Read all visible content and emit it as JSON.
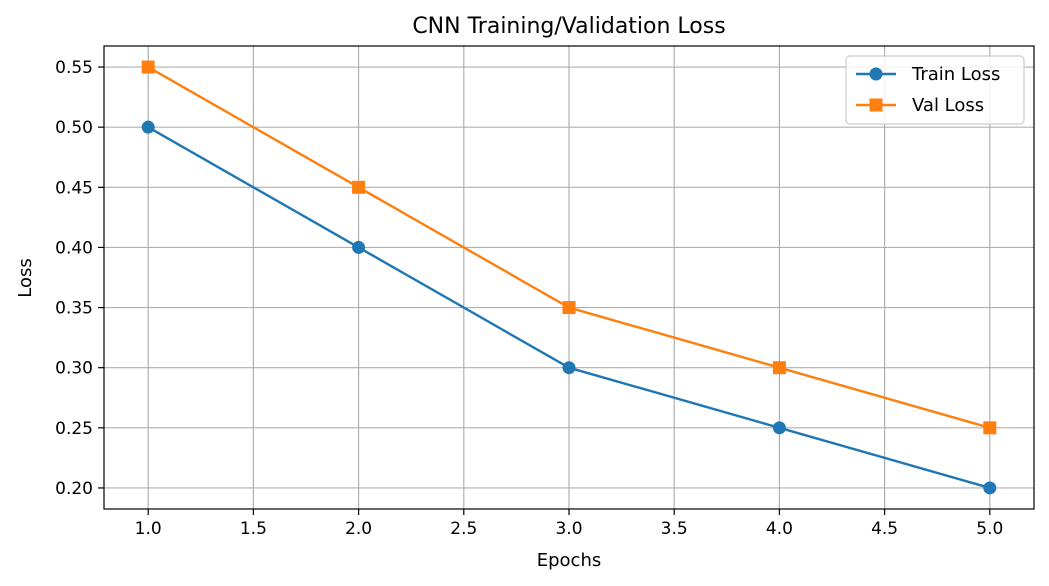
{
  "chart_data": {
    "type": "line",
    "title": "CNN Training/Validation Loss",
    "xlabel": "Epochs",
    "ylabel": "Loss",
    "x": [
      1,
      2,
      3,
      4,
      5
    ],
    "xlim": [
      0.79,
      5.21
    ],
    "ylim": [
      0.1825,
      0.5675
    ],
    "xticks": [
      1.0,
      1.5,
      2.0,
      2.5,
      3.0,
      3.5,
      4.0,
      4.5,
      5.0
    ],
    "xtick_labels": [
      "1.0",
      "1.5",
      "2.0",
      "2.5",
      "3.0",
      "3.5",
      "4.0",
      "4.5",
      "5.0"
    ],
    "yticks": [
      0.2,
      0.25,
      0.3,
      0.35,
      0.4,
      0.45,
      0.5,
      0.55
    ],
    "ytick_labels": [
      "0.20",
      "0.25",
      "0.30",
      "0.35",
      "0.40",
      "0.45",
      "0.50",
      "0.55"
    ],
    "grid": true,
    "legend_position": "top-right",
    "series": [
      {
        "name": "Train Loss",
        "values": [
          0.5,
          0.4,
          0.3,
          0.25,
          0.2
        ],
        "color": "#1f77b4",
        "marker": "circle"
      },
      {
        "name": "Val Loss",
        "values": [
          0.55,
          0.45,
          0.35,
          0.3,
          0.25
        ],
        "color": "#ff7f0e",
        "marker": "square"
      }
    ]
  }
}
